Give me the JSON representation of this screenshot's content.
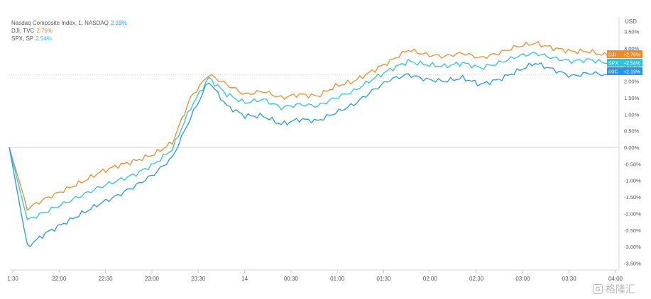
{
  "legend": [
    {
      "label": "Nasdaq Composite Index, 1, NASDAQ",
      "value": "2.19%",
      "color": "#2196f3"
    },
    {
      "label": "DJI, TVC",
      "value": "2.76%",
      "color": "#f08a24"
    },
    {
      "label": "SPX, SP",
      "value": "2.54%",
      "color": "#26c6da"
    }
  ],
  "watermark": {
    "text": "格隆汇",
    "logo": "G"
  },
  "chart_data": {
    "type": "line",
    "yunit": "USD",
    "ylim": [
      -3.7,
      3.7
    ],
    "yticks": [
      "3.50%",
      "3.00%",
      "2.50%",
      "2.00%",
      "1.50%",
      "1.00%",
      "0.50%",
      "0.00%",
      "-0.50%",
      "-1.00%",
      "-1.50%",
      "-2.00%",
      "-2.50%",
      "-3.00%",
      "-3.50%"
    ],
    "xticks": [
      "1:30",
      "22:00",
      "22:30",
      "23:00",
      "23:30",
      "14",
      "00:30",
      "01:00",
      "01:30",
      "02:00",
      "02:30",
      "03:00",
      "03:30",
      "04:00"
    ],
    "series": [
      {
        "name": "DJI",
        "color": "#f08a24",
        "badge": "+2.76%",
        "values": [
          0,
          -1.85,
          -1.55,
          -1.3,
          -1.05,
          -0.75,
          -0.55,
          -0.4,
          -0.2,
          0.15,
          1.5,
          2.2,
          1.9,
          1.6,
          1.7,
          1.5,
          1.6,
          1.55,
          1.85,
          2.0,
          2.3,
          2.6,
          2.95,
          2.8,
          2.75,
          2.85,
          2.7,
          2.85,
          3.05,
          3.15,
          3.0,
          2.9,
          2.9,
          2.76
        ]
      },
      {
        "name": "SPX",
        "color": "#26c6da",
        "badge": "+2.54%",
        "values": [
          0,
          -2.2,
          -1.95,
          -1.7,
          -1.45,
          -1.2,
          -1.0,
          -0.8,
          -0.5,
          -0.05,
          1.2,
          2.1,
          1.6,
          1.35,
          1.45,
          1.2,
          1.3,
          1.25,
          1.5,
          1.7,
          2.05,
          2.35,
          2.6,
          2.5,
          2.45,
          2.55,
          2.4,
          2.55,
          2.75,
          2.85,
          2.7,
          2.6,
          2.65,
          2.54
        ]
      },
      {
        "name": "IXIC",
        "color": "#2196f3",
        "badge": "+2.19%",
        "values": [
          0,
          -3.0,
          -2.6,
          -2.3,
          -2.0,
          -1.7,
          -1.45,
          -1.15,
          -0.8,
          -0.3,
          0.9,
          2.0,
          1.25,
          0.95,
          0.95,
          0.7,
          0.85,
          0.8,
          1.05,
          1.3,
          1.7,
          2.05,
          2.2,
          2.05,
          2.0,
          2.1,
          1.9,
          2.05,
          2.3,
          2.55,
          2.35,
          2.15,
          2.25,
          2.19
        ]
      }
    ]
  }
}
